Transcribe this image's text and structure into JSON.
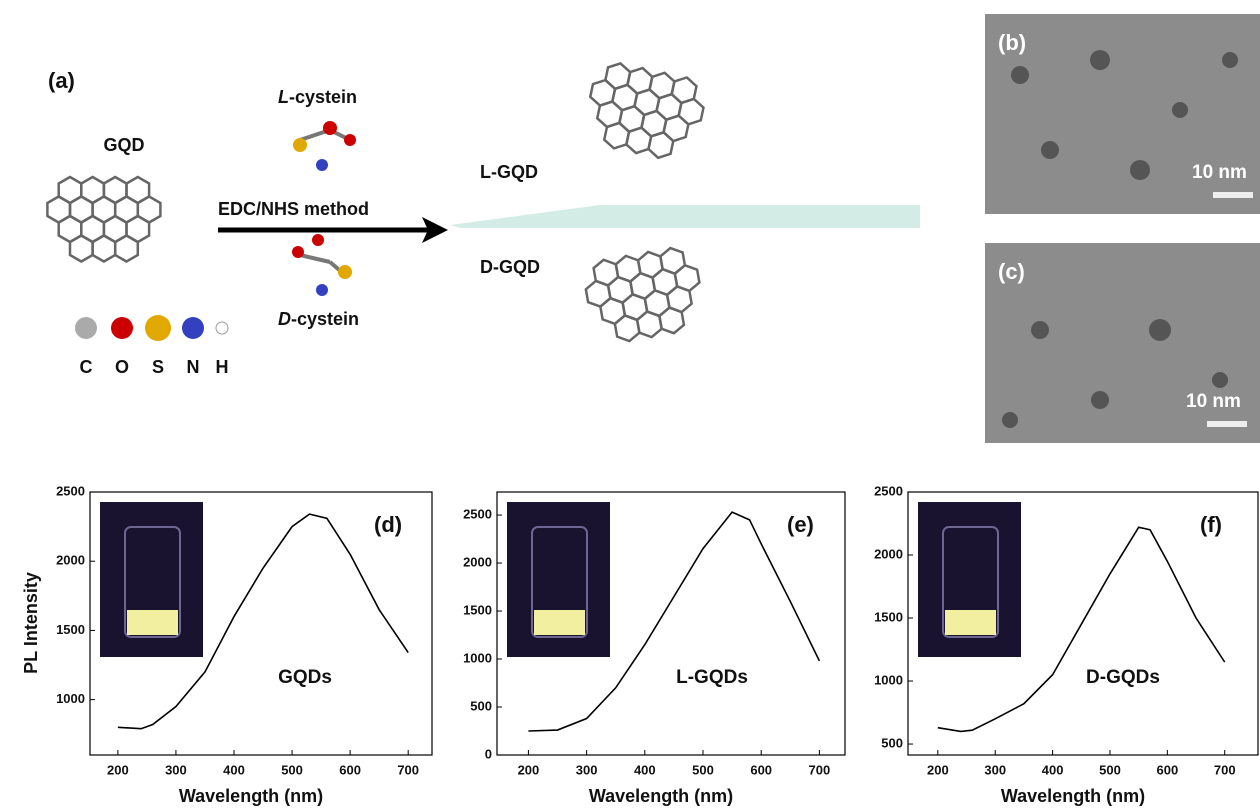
{
  "scheme": {
    "panel_label": "(a)",
    "gqd_label": "GQD",
    "l_cystein": {
      "prefix": "L",
      "rest": "-cystein"
    },
    "d_cystein": {
      "prefix": "D",
      "rest": "-cystein"
    },
    "method": "EDC/NHS method",
    "l_gqd": "L-GQD",
    "d_gqd": "D-GQD",
    "atoms": [
      "C",
      "O",
      "S",
      "N",
      "H"
    ]
  },
  "tem": [
    {
      "panel_label": "(b)",
      "scale": "10 nm"
    },
    {
      "panel_label": "(c)",
      "scale": "10 nm"
    }
  ],
  "chart_data": [
    {
      "type": "line",
      "panel_label": "(d)",
      "annotation": "GQDs",
      "xlabel": "Wavelength (nm)",
      "ylabel": "PL Intensity",
      "x": [
        200,
        240,
        260,
        300,
        350,
        400,
        450,
        500,
        530,
        560,
        600,
        650,
        700
      ],
      "values": [
        800,
        790,
        820,
        950,
        1200,
        1600,
        1950,
        2250,
        2340,
        2310,
        2050,
        1650,
        1340
      ],
      "color": "#000000",
      "xlim": [
        152,
        741
      ],
      "ylim": [
        600,
        2500
      ],
      "xticks": [
        200,
        300,
        400,
        500,
        600,
        700
      ],
      "yticks": [
        1000,
        1500,
        2000,
        2500
      ]
    },
    {
      "type": "line",
      "panel_label": "(e)",
      "annotation": "L-GQDs",
      "xlabel": "Wavelength (nm)",
      "x": [
        200,
        250,
        300,
        350,
        400,
        450,
        500,
        550,
        580,
        600,
        650,
        700
      ],
      "values": [
        250,
        260,
        380,
        700,
        1150,
        1650,
        2150,
        2530,
        2450,
        2200,
        1600,
        980
      ],
      "color": "#000000",
      "xlim": [
        146,
        744
      ],
      "ylim": [
        0,
        2740
      ],
      "xticks": [
        200,
        300,
        400,
        500,
        600,
        700
      ],
      "yticks": [
        0,
        500,
        1000,
        1500,
        2000,
        2500
      ]
    },
    {
      "type": "line",
      "panel_label": "(f)",
      "annotation": "D-GQDs",
      "xlabel": "Wavelength (nm)",
      "x": [
        200,
        240,
        260,
        300,
        350,
        400,
        450,
        500,
        550,
        570,
        600,
        650,
        700
      ],
      "values": [
        630,
        600,
        610,
        700,
        820,
        1050,
        1450,
        1850,
        2220,
        2200,
        1950,
        1500,
        1150
      ],
      "color": "#000000",
      "xlim": [
        148,
        758
      ],
      "ylim": [
        413,
        2500
      ],
      "xticks": [
        200,
        300,
        400,
        500,
        600,
        700
      ],
      "yticks": [
        500,
        1000,
        1500,
        2000,
        2500
      ]
    }
  ]
}
